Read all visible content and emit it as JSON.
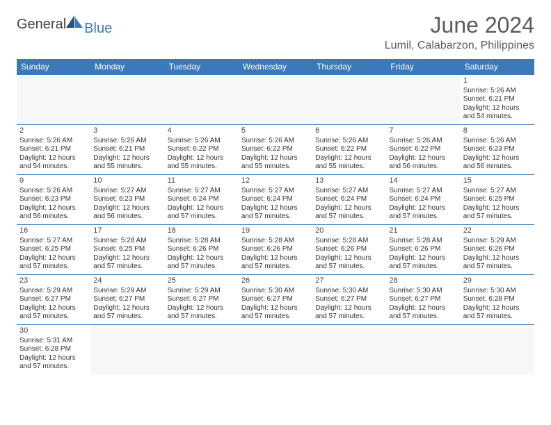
{
  "logo": {
    "general": "General",
    "blue": "Blue"
  },
  "title": "June 2024",
  "location": "Lumil, Calabarzon, Philippines",
  "colors": {
    "header_bg": "#3a7ab8",
    "header_text": "#ffffff",
    "border": "#3a7ab8",
    "text": "#333333",
    "title_color": "#5a5a5a"
  },
  "weekdays": [
    "Sunday",
    "Monday",
    "Tuesday",
    "Wednesday",
    "Thursday",
    "Friday",
    "Saturday"
  ],
  "first_weekday": 6,
  "days": [
    {
      "n": 1,
      "sr": "5:26 AM",
      "ss": "6:21 PM",
      "dl": "12 hours and 54 minutes."
    },
    {
      "n": 2,
      "sr": "5:26 AM",
      "ss": "6:21 PM",
      "dl": "12 hours and 54 minutes."
    },
    {
      "n": 3,
      "sr": "5:26 AM",
      "ss": "6:21 PM",
      "dl": "12 hours and 55 minutes."
    },
    {
      "n": 4,
      "sr": "5:26 AM",
      "ss": "6:22 PM",
      "dl": "12 hours and 55 minutes."
    },
    {
      "n": 5,
      "sr": "5:26 AM",
      "ss": "6:22 PM",
      "dl": "12 hours and 55 minutes."
    },
    {
      "n": 6,
      "sr": "5:26 AM",
      "ss": "6:22 PM",
      "dl": "12 hours and 55 minutes."
    },
    {
      "n": 7,
      "sr": "5:26 AM",
      "ss": "6:22 PM",
      "dl": "12 hours and 56 minutes."
    },
    {
      "n": 8,
      "sr": "5:26 AM",
      "ss": "6:23 PM",
      "dl": "12 hours and 56 minutes."
    },
    {
      "n": 9,
      "sr": "5:26 AM",
      "ss": "6:23 PM",
      "dl": "12 hours and 56 minutes."
    },
    {
      "n": 10,
      "sr": "5:27 AM",
      "ss": "6:23 PM",
      "dl": "12 hours and 56 minutes."
    },
    {
      "n": 11,
      "sr": "5:27 AM",
      "ss": "6:24 PM",
      "dl": "12 hours and 57 minutes."
    },
    {
      "n": 12,
      "sr": "5:27 AM",
      "ss": "6:24 PM",
      "dl": "12 hours and 57 minutes."
    },
    {
      "n": 13,
      "sr": "5:27 AM",
      "ss": "6:24 PM",
      "dl": "12 hours and 57 minutes."
    },
    {
      "n": 14,
      "sr": "5:27 AM",
      "ss": "6:24 PM",
      "dl": "12 hours and 57 minutes."
    },
    {
      "n": 15,
      "sr": "5:27 AM",
      "ss": "6:25 PM",
      "dl": "12 hours and 57 minutes."
    },
    {
      "n": 16,
      "sr": "5:27 AM",
      "ss": "6:25 PM",
      "dl": "12 hours and 57 minutes."
    },
    {
      "n": 17,
      "sr": "5:28 AM",
      "ss": "6:25 PM",
      "dl": "12 hours and 57 minutes."
    },
    {
      "n": 18,
      "sr": "5:28 AM",
      "ss": "6:26 PM",
      "dl": "12 hours and 57 minutes."
    },
    {
      "n": 19,
      "sr": "5:28 AM",
      "ss": "6:26 PM",
      "dl": "12 hours and 57 minutes."
    },
    {
      "n": 20,
      "sr": "5:28 AM",
      "ss": "6:26 PM",
      "dl": "12 hours and 57 minutes."
    },
    {
      "n": 21,
      "sr": "5:28 AM",
      "ss": "6:26 PM",
      "dl": "12 hours and 57 minutes."
    },
    {
      "n": 22,
      "sr": "5:29 AM",
      "ss": "6:26 PM",
      "dl": "12 hours and 57 minutes."
    },
    {
      "n": 23,
      "sr": "5:29 AM",
      "ss": "6:27 PM",
      "dl": "12 hours and 57 minutes."
    },
    {
      "n": 24,
      "sr": "5:29 AM",
      "ss": "6:27 PM",
      "dl": "12 hours and 57 minutes."
    },
    {
      "n": 25,
      "sr": "5:29 AM",
      "ss": "6:27 PM",
      "dl": "12 hours and 57 minutes."
    },
    {
      "n": 26,
      "sr": "5:30 AM",
      "ss": "6:27 PM",
      "dl": "12 hours and 57 minutes."
    },
    {
      "n": 27,
      "sr": "5:30 AM",
      "ss": "6:27 PM",
      "dl": "12 hours and 57 minutes."
    },
    {
      "n": 28,
      "sr": "5:30 AM",
      "ss": "6:27 PM",
      "dl": "12 hours and 57 minutes."
    },
    {
      "n": 29,
      "sr": "5:30 AM",
      "ss": "6:28 PM",
      "dl": "12 hours and 57 minutes."
    },
    {
      "n": 30,
      "sr": "5:31 AM",
      "ss": "6:28 PM",
      "dl": "12 hours and 57 minutes."
    }
  ],
  "labels": {
    "sunrise": "Sunrise:",
    "sunset": "Sunset:",
    "daylight": "Daylight:"
  }
}
